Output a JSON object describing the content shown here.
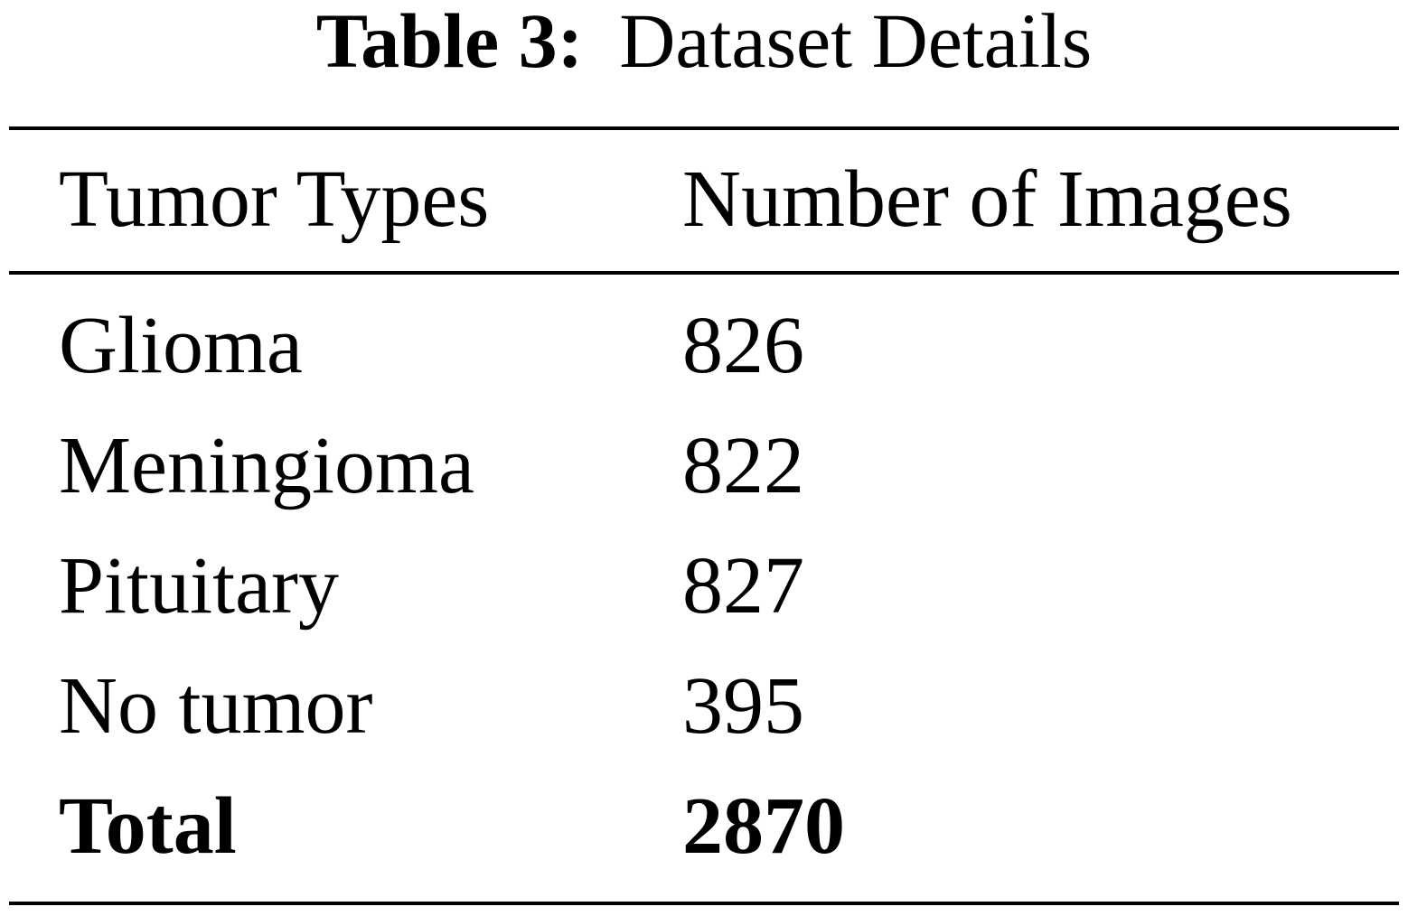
{
  "caption": {
    "label": "Table 3:",
    "text": "Dataset Details"
  },
  "table": {
    "header": [
      "Tumor Types",
      "Number of Images"
    ],
    "rows": [
      [
        "Glioma",
        826
      ],
      [
        "Meningioma",
        822
      ],
      [
        "Pituitary",
        827
      ],
      [
        "No tumor",
        395
      ]
    ],
    "total": [
      "Total",
      2870
    ]
  }
}
